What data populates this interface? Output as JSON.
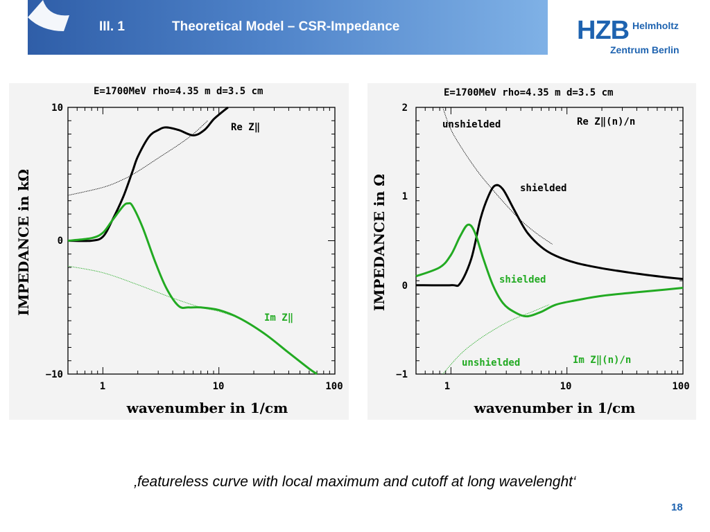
{
  "header": {
    "section": "III.  1",
    "title": "Theoretical Model – CSR-Impedance"
  },
  "logo": {
    "abbr": "HZB",
    "line1": "Helmholtz",
    "line2": "Zentrum Berlin"
  },
  "colors": {
    "header_dark": "#2f5ea8",
    "header_light": "#7fb1e6",
    "logo_blue": "#1e63b0",
    "real_part": "#000000",
    "imag_part": "#22aa22"
  },
  "chart_data": [
    {
      "type": "line",
      "title": "E=1700MeV rho=4.35 m d=3.5 cm",
      "xlabel": "wavenumber in 1/cm",
      "ylabel": "IMPEDANCE in kΩ",
      "xscale": "log",
      "xlim": [
        0.5,
        100
      ],
      "ylim": [
        -10,
        10
      ],
      "xticks": [
        "1",
        "10",
        "100"
      ],
      "yticks": [
        "10",
        "0",
        "−10"
      ],
      "grid": false,
      "annotations": [
        "Re Z‖",
        "Im Z‖"
      ],
      "series": [
        {
          "name": "Re Z‖",
          "color": "#000000",
          "width": 3,
          "x": [
            0.5,
            0.8,
            1.0,
            1.2,
            1.5,
            1.8,
            2.0,
            2.5,
            3.0,
            3.5,
            4.5,
            6.0,
            7.5,
            9.0,
            10.5,
            12.0
          ],
          "y": [
            0,
            0,
            0.3,
            1.5,
            3.3,
            5.2,
            6.3,
            7.8,
            8.3,
            8.5,
            8.3,
            7.9,
            8.3,
            9.1,
            9.6,
            10.0
          ]
        },
        {
          "name": "Re Z‖ unshielded",
          "color": "#000000",
          "width": 1,
          "x": [
            0.5,
            1.0,
            1.5,
            2.0,
            3.0,
            4.5,
            6.0,
            8.0
          ],
          "y": [
            3.4,
            4.0,
            4.6,
            5.2,
            6.2,
            7.2,
            8.0,
            9.0
          ]
        },
        {
          "name": "Im Z‖",
          "color": "#22aa22",
          "width": 3,
          "x": [
            0.5,
            0.8,
            1.0,
            1.2,
            1.5,
            1.65,
            1.8,
            2.2,
            2.8,
            3.5,
            4.5,
            5.5,
            7.0,
            10.0,
            15.0,
            25.0,
            40.0,
            60.0,
            70.0
          ],
          "y": [
            0,
            0.2,
            0.6,
            1.5,
            2.6,
            2.8,
            2.6,
            1.0,
            -1.5,
            -3.5,
            -4.9,
            -5.0,
            -5.0,
            -5.2,
            -5.8,
            -7.0,
            -8.4,
            -9.6,
            -10.0
          ]
        },
        {
          "name": "Im Z‖ unshielded",
          "color": "#22aa22",
          "width": 1,
          "x": [
            0.5,
            1.0,
            2.0,
            4.0,
            7.0,
            10.0,
            15.0
          ],
          "y": [
            -1.9,
            -2.4,
            -3.3,
            -4.3,
            -5.0,
            -5.3,
            -5.8
          ]
        }
      ]
    },
    {
      "type": "line",
      "title": "E=1700MeV rho=4.35 m d=3.5 cm",
      "xlabel": "wavenumber in 1/cm",
      "ylabel": "IMPEDANCE in Ω",
      "xscale": "log",
      "xlim": [
        0.5,
        100
      ],
      "ylim": [
        -1,
        2
      ],
      "xticks": [
        "1",
        "10",
        "100"
      ],
      "yticks": [
        "2",
        "1",
        "0",
        "−1"
      ],
      "grid": false,
      "annotations": [
        "unshielded",
        "Re Z‖(n)/n",
        "shielded",
        "shielded",
        "unshielded",
        "Im Z‖(n)/n"
      ],
      "series": [
        {
          "name": "Re Z‖(n)/n shielded",
          "color": "#000000",
          "width": 3,
          "x": [
            0.5,
            1.0,
            1.2,
            1.5,
            1.8,
            2.1,
            2.4,
            2.8,
            3.5,
            4.5,
            6.0,
            8.0,
            12.0,
            20.0,
            40.0,
            70.0,
            100.0
          ],
          "y": [
            0,
            0,
            0.02,
            0.3,
            0.75,
            1.0,
            1.12,
            1.08,
            0.85,
            0.6,
            0.43,
            0.33,
            0.25,
            0.19,
            0.13,
            0.09,
            0.07
          ]
        },
        {
          "name": "Re Z‖(n)/n unshielded",
          "color": "#000000",
          "width": 1,
          "x": [
            0.85,
            1.0,
            1.3,
            1.7,
            2.2,
            3.0,
            4.0,
            5.5,
            7.5
          ],
          "y": [
            2.0,
            1.75,
            1.5,
            1.28,
            1.1,
            0.9,
            0.73,
            0.58,
            0.46
          ]
        },
        {
          "name": "Im Z‖(n)/n shielded",
          "color": "#22aa22",
          "width": 3,
          "x": [
            0.5,
            0.8,
            1.0,
            1.2,
            1.4,
            1.6,
            1.9,
            2.3,
            2.8,
            3.5,
            4.5,
            6.0,
            8.0,
            12.0,
            20.0,
            40.0,
            70.0,
            100.0
          ],
          "y": [
            0.1,
            0.2,
            0.34,
            0.55,
            0.68,
            0.6,
            0.3,
            0.0,
            -0.2,
            -0.3,
            -0.35,
            -0.3,
            -0.22,
            -0.17,
            -0.12,
            -0.08,
            -0.05,
            -0.03
          ]
        },
        {
          "name": "Im Z‖(n)/n unshielded",
          "color": "#22aa22",
          "width": 1,
          "x": [
            0.85,
            1.2,
            1.7,
            2.5,
            3.5,
            5.0,
            7.0
          ],
          "y": [
            -1.0,
            -0.78,
            -0.62,
            -0.48,
            -0.38,
            -0.3,
            -0.22
          ]
        }
      ]
    }
  ],
  "caption": "‚featureless curve  with local maximum and cutoff at long wavelenght‘",
  "page_number": "18"
}
